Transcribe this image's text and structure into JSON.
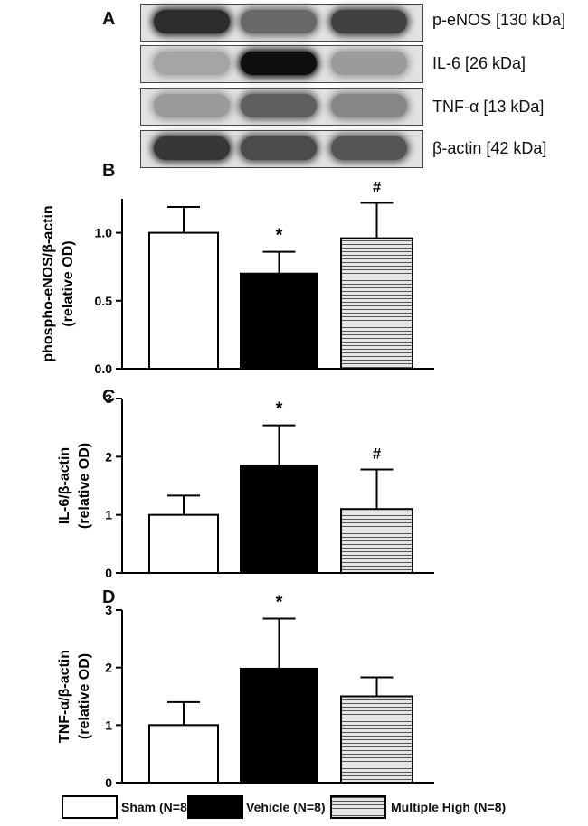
{
  "panels": {
    "a": "A",
    "b": "B",
    "c": "C",
    "d": "D"
  },
  "blot": {
    "rows": [
      {
        "label": "p-eNOS [130 kDa]",
        "intensity": [
          0.85,
          0.55,
          0.75
        ]
      },
      {
        "label": "IL-6 [26 kDa]",
        "intensity": [
          0.25,
          1.0,
          0.3
        ]
      },
      {
        "label": "TNF-α [13 kDa]",
        "intensity": [
          0.3,
          0.6,
          0.4
        ]
      },
      {
        "label": "β-actin [42 kDa]",
        "intensity": [
          0.8,
          0.7,
          0.65
        ]
      }
    ]
  },
  "legend": {
    "sham": "Sham (N=8)",
    "vehicle": "Vehicle (N=8)",
    "multiple_high": "Multiple High (N=8)"
  },
  "colors": {
    "sham": "#ffffff",
    "vehicle": "#000000",
    "multiple_high_stripe": "#555555",
    "multiple_high_bg": "#e6e6e6"
  },
  "chart_data": [
    {
      "type": "bar",
      "categories": [
        "Sham (N=8)",
        "Vehicle (N=8)",
        "Multiple High (N=8)"
      ],
      "values": [
        1.0,
        0.7,
        0.96
      ],
      "errors": [
        0.19,
        0.16,
        0.26
      ],
      "annotations": [
        "",
        "*",
        "#"
      ],
      "ylabel_lines": [
        "phospho-eNOS/β-actin",
        "(relative OD)"
      ],
      "ylim": [
        0,
        1.25
      ],
      "yticks": [
        0.0,
        0.5,
        1.0
      ],
      "ytick_labels": [
        "0.0",
        "0.5",
        "1.0"
      ]
    },
    {
      "type": "bar",
      "categories": [
        "Sham (N=8)",
        "Vehicle (N=8)",
        "Multiple High (N=8)"
      ],
      "values": [
        1.0,
        1.85,
        1.1
      ],
      "errors": [
        0.33,
        0.69,
        0.68
      ],
      "annotations": [
        "",
        "*",
        "#"
      ],
      "ylabel_lines": [
        "IL-6/β-actin",
        "(relative OD)"
      ],
      "ylim": [
        0,
        3
      ],
      "yticks": [
        0,
        1,
        2,
        3
      ],
      "ytick_labels": [
        "0",
        "1",
        "2",
        "3"
      ]
    },
    {
      "type": "bar",
      "categories": [
        "Sham (N=8)",
        "Vehicle (N=8)",
        "Multiple High (N=8)"
      ],
      "values": [
        1.0,
        1.98,
        1.5
      ],
      "errors": [
        0.4,
        0.87,
        0.33
      ],
      "annotations": [
        "",
        "*",
        ""
      ],
      "ylabel_lines": [
        "TNF-α/β-actin",
        "(relative OD)"
      ],
      "ylim": [
        0,
        3
      ],
      "yticks": [
        0,
        1,
        2,
        3
      ],
      "ytick_labels": [
        "0",
        "1",
        "2",
        "3"
      ]
    }
  ]
}
